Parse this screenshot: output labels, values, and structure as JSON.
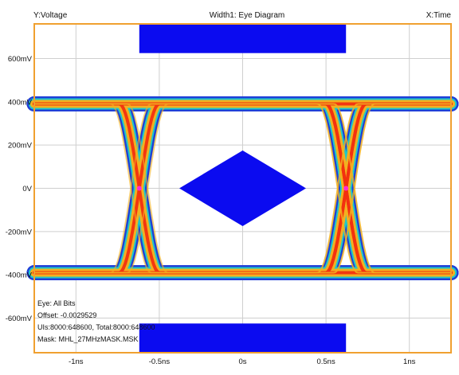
{
  "header": {
    "y_label": "Y:Voltage",
    "title": "Width1: Eye Diagram",
    "x_label": "X:Time"
  },
  "info": {
    "eye": "Eye: All Bits",
    "offset": "Offset: -0.0029529",
    "uis": "UIs:8000:648600, Total:8000:648600",
    "mask": "Mask: MHL_27MHzMASK.MSK"
  },
  "colors": {
    "frame": "#f0a030",
    "grid": "#cfcfcf",
    "mask": "#0b0bf0",
    "trace_outer": "#1f3fd8",
    "trace_mid": "#20c8c8",
    "trace_warm": "#f2b020",
    "trace_core": "#f23010",
    "crossing": "#ff2ad8"
  },
  "chart_data": {
    "type": "eye-diagram",
    "title": "Width1: Eye Diagram",
    "xlabel": "X:Time",
    "ylabel": "Y:Voltage",
    "x_unit": "ns",
    "y_unit": "mV",
    "xlim": [
      -1.25,
      1.25
    ],
    "ylim": [
      -760,
      760
    ],
    "x_ticks": [
      {
        "value": -1.0,
        "label": "-1ns"
      },
      {
        "value": -0.5,
        "label": "-0.5ns"
      },
      {
        "value": 0.0,
        "label": "0s"
      },
      {
        "value": 0.5,
        "label": "0.5ns"
      },
      {
        "value": 1.0,
        "label": "1ns"
      }
    ],
    "y_ticks": [
      {
        "value": 600,
        "label": "600mV"
      },
      {
        "value": 400,
        "label": "400mV"
      },
      {
        "value": 200,
        "label": "200mV"
      },
      {
        "value": 0,
        "label": "0V"
      },
      {
        "value": -200,
        "label": "-200mV"
      },
      {
        "value": -400,
        "label": "-400mV"
      },
      {
        "value": -600,
        "label": "-600mV"
      }
    ],
    "grid": true,
    "levels": {
      "high": 390,
      "low": -390
    },
    "crossings": [
      -0.62,
      0.62
    ],
    "transition_halfwidth": 0.12,
    "mask": {
      "top_rect": {
        "x": [
          -0.62,
          0.62
        ],
        "y": [
          625,
          760
        ]
      },
      "bottom_rect": {
        "x": [
          -0.62,
          0.62
        ],
        "y": [
          -760,
          -625
        ]
      },
      "diamond": [
        [
          -0.38,
          0
        ],
        [
          0,
          175
        ],
        [
          0.38,
          0
        ],
        [
          0,
          -175
        ]
      ]
    }
  }
}
